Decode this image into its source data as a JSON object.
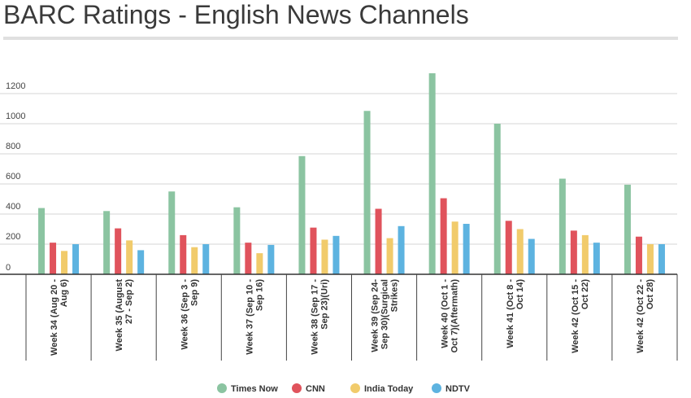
{
  "page": {
    "title": "BARC Ratings - English News Channels"
  },
  "chart_data": {
    "type": "bar",
    "title": "BARC Ratings - English News Channels",
    "xlabel": "",
    "ylabel": "",
    "ylim": [
      0,
      1400
    ],
    "yticks": [
      0,
      200,
      400,
      600,
      800,
      1000,
      1200
    ],
    "grid": true,
    "legend_position": "bottom",
    "categories": [
      [
        "Week 34 (Aug 20 -",
        "Aug 6)"
      ],
      [
        "Week 35 (August",
        "27 - Sep 2)"
      ],
      [
        "Week 36 (Sep 3 -",
        "Sep 9)"
      ],
      [
        "Week 37 (Sep 10 -",
        "Sep 16)"
      ],
      [
        "Week 38 (Sep 17 -",
        "Sep 23)(Uri)"
      ],
      [
        "Week 39 (Sep 24-",
        "Sep 30)(Surgical",
        "Strikes)"
      ],
      [
        "Week 40 (Oct 1 -",
        "Oct 7)(Aftermath)"
      ],
      [
        "Week 41 (Oct 8 -",
        "Oct 14)"
      ],
      [
        "Week 42 (Oct 15 -",
        "Oct 22)"
      ],
      [
        "Week 42 (Oct 22 -",
        "Oct 28)"
      ]
    ],
    "series": [
      {
        "name": "Times Now",
        "color": "#8bc4a1",
        "values": [
          440,
          420,
          550,
          445,
          785,
          1085,
          1335,
          1000,
          635,
          595
        ]
      },
      {
        "name": "CNN",
        "color": "#e0535c",
        "values": [
          210,
          305,
          260,
          210,
          310,
          435,
          505,
          355,
          290,
          250
        ]
      },
      {
        "name": "India Today",
        "color": "#f1cb6b",
        "values": [
          155,
          225,
          180,
          140,
          230,
          240,
          350,
          300,
          260,
          200
        ]
      },
      {
        "name": "NDTV",
        "color": "#5db3e0",
        "values": [
          200,
          160,
          200,
          195,
          255,
          320,
          335,
          235,
          210,
          200
        ]
      }
    ]
  }
}
